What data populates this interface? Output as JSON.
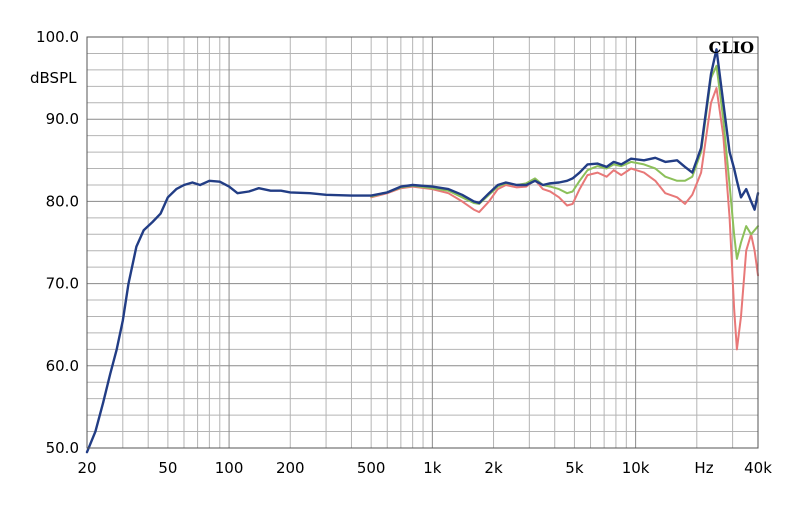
{
  "chart_data": {
    "type": "line",
    "title": "",
    "brand": "CLIO",
    "xlabel": "",
    "ylabel": "dBSPL",
    "x_unit_tick": "Hz",
    "xscale": "log",
    "xlim": [
      20,
      40000
    ],
    "ylim": [
      50,
      100
    ],
    "grid": true,
    "legend": "none",
    "y_ticks": [
      "50.0",
      "60.0",
      "70.0",
      "80.0",
      "90.0",
      "100.0"
    ],
    "x_ticks": [
      {
        "value": 20,
        "label": "20"
      },
      {
        "value": 50,
        "label": "50"
      },
      {
        "value": 100,
        "label": "100"
      },
      {
        "value": 200,
        "label": "200"
      },
      {
        "value": 500,
        "label": "500"
      },
      {
        "value": 1000,
        "label": "1k"
      },
      {
        "value": 2000,
        "label": "2k"
      },
      {
        "value": 5000,
        "label": "5k"
      },
      {
        "value": 10000,
        "label": "10k"
      },
      {
        "value": 40000,
        "label": "40k"
      }
    ],
    "x_grid": [
      20,
      30,
      40,
      50,
      60,
      70,
      80,
      90,
      100,
      200,
      300,
      400,
      500,
      600,
      700,
      800,
      900,
      1000,
      2000,
      3000,
      4000,
      5000,
      6000,
      7000,
      8000,
      9000,
      10000,
      20000,
      30000,
      40000
    ],
    "x_major": [
      100,
      1000,
      10000
    ],
    "series": [
      {
        "color": "#e87878",
        "points": [
          [
            500,
            80.5
          ],
          [
            600,
            81.0
          ],
          [
            700,
            81.6
          ],
          [
            800,
            81.8
          ],
          [
            1000,
            81.5
          ],
          [
            1200,
            81.0
          ],
          [
            1400,
            80.0
          ],
          [
            1600,
            79.0
          ],
          [
            1700,
            78.7
          ],
          [
            1900,
            80.0
          ],
          [
            2100,
            81.5
          ],
          [
            2300,
            82.0
          ],
          [
            2600,
            81.7
          ],
          [
            2900,
            81.8
          ],
          [
            3200,
            82.6
          ],
          [
            3500,
            81.5
          ],
          [
            3800,
            81.2
          ],
          [
            4200,
            80.5
          ],
          [
            4600,
            79.5
          ],
          [
            4900,
            79.7
          ],
          [
            5300,
            81.5
          ],
          [
            5800,
            83.2
          ],
          [
            6500,
            83.5
          ],
          [
            7200,
            83.0
          ],
          [
            7800,
            83.8
          ],
          [
            8500,
            83.2
          ],
          [
            9500,
            84.0
          ],
          [
            11000,
            83.5
          ],
          [
            12500,
            82.5
          ],
          [
            14000,
            81.0
          ],
          [
            16000,
            80.5
          ],
          [
            17500,
            79.7
          ],
          [
            19000,
            80.8
          ],
          [
            21000,
            83.5
          ],
          [
            23500,
            92.0
          ],
          [
            25000,
            93.8
          ],
          [
            27000,
            88.0
          ],
          [
            29000,
            78.0
          ],
          [
            30500,
            67.0
          ],
          [
            31500,
            62.0
          ],
          [
            33000,
            66.0
          ],
          [
            35000,
            74.0
          ],
          [
            37000,
            76.0
          ],
          [
            38500,
            74.0
          ],
          [
            40000,
            71.0
          ]
        ]
      },
      {
        "color": "#8cc05a",
        "points": [
          [
            500,
            80.6
          ],
          [
            600,
            81.1
          ],
          [
            700,
            81.7
          ],
          [
            800,
            81.9
          ],
          [
            1000,
            81.6
          ],
          [
            1200,
            81.3
          ],
          [
            1400,
            80.5
          ],
          [
            1600,
            79.8
          ],
          [
            1700,
            79.7
          ],
          [
            1900,
            80.8
          ],
          [
            2100,
            81.8
          ],
          [
            2300,
            82.2
          ],
          [
            2600,
            82.0
          ],
          [
            2900,
            82.2
          ],
          [
            3200,
            82.8
          ],
          [
            3500,
            82.0
          ],
          [
            3800,
            81.8
          ],
          [
            4200,
            81.5
          ],
          [
            4600,
            81.0
          ],
          [
            4900,
            81.2
          ],
          [
            5300,
            82.5
          ],
          [
            5800,
            83.8
          ],
          [
            6500,
            84.3
          ],
          [
            7200,
            84.0
          ],
          [
            7800,
            84.5
          ],
          [
            8500,
            84.3
          ],
          [
            9500,
            84.8
          ],
          [
            11000,
            84.5
          ],
          [
            12500,
            84.0
          ],
          [
            14000,
            83.0
          ],
          [
            16000,
            82.5
          ],
          [
            17500,
            82.5
          ],
          [
            19000,
            83.0
          ],
          [
            21000,
            86.0
          ],
          [
            23500,
            95.0
          ],
          [
            25000,
            96.5
          ],
          [
            27000,
            90.0
          ],
          [
            29000,
            82.0
          ],
          [
            30500,
            76.0
          ],
          [
            31500,
            73.0
          ],
          [
            33000,
            75.0
          ],
          [
            35000,
            77.0
          ],
          [
            37000,
            76.0
          ],
          [
            38500,
            76.5
          ],
          [
            40000,
            77.0
          ]
        ]
      },
      {
        "color": "#223d85",
        "points": [
          [
            20,
            49.5
          ],
          [
            22,
            52.0
          ],
          [
            24,
            55.5
          ],
          [
            26,
            59.0
          ],
          [
            28,
            62.0
          ],
          [
            30,
            65.5
          ],
          [
            32,
            70.0
          ],
          [
            35,
            74.5
          ],
          [
            38,
            76.5
          ],
          [
            42,
            77.5
          ],
          [
            46,
            78.5
          ],
          [
            50,
            80.5
          ],
          [
            55,
            81.5
          ],
          [
            60,
            82.0
          ],
          [
            66,
            82.3
          ],
          [
            72,
            82.0
          ],
          [
            80,
            82.5
          ],
          [
            90,
            82.4
          ],
          [
            100,
            81.8
          ],
          [
            110,
            81.0
          ],
          [
            125,
            81.2
          ],
          [
            140,
            81.6
          ],
          [
            160,
            81.3
          ],
          [
            180,
            81.3
          ],
          [
            200,
            81.1
          ],
          [
            250,
            81.0
          ],
          [
            300,
            80.8
          ],
          [
            400,
            80.7
          ],
          [
            500,
            80.7
          ],
          [
            600,
            81.1
          ],
          [
            700,
            81.8
          ],
          [
            800,
            82.0
          ],
          [
            1000,
            81.8
          ],
          [
            1200,
            81.5
          ],
          [
            1400,
            80.8
          ],
          [
            1600,
            80.0
          ],
          [
            1700,
            79.8
          ],
          [
            1900,
            81.0
          ],
          [
            2100,
            82.0
          ],
          [
            2300,
            82.3
          ],
          [
            2600,
            82.0
          ],
          [
            2900,
            82.0
          ],
          [
            3200,
            82.5
          ],
          [
            3500,
            82.0
          ],
          [
            3800,
            82.2
          ],
          [
            4200,
            82.3
          ],
          [
            4600,
            82.5
          ],
          [
            4900,
            82.8
          ],
          [
            5300,
            83.5
          ],
          [
            5800,
            84.5
          ],
          [
            6500,
            84.6
          ],
          [
            7200,
            84.2
          ],
          [
            7800,
            84.8
          ],
          [
            8500,
            84.5
          ],
          [
            9500,
            85.2
          ],
          [
            11000,
            85.0
          ],
          [
            12500,
            85.3
          ],
          [
            14000,
            84.8
          ],
          [
            16000,
            85.0
          ],
          [
            17500,
            84.2
          ],
          [
            19000,
            83.5
          ],
          [
            21000,
            86.5
          ],
          [
            23500,
            95.5
          ],
          [
            25000,
            98.5
          ],
          [
            27000,
            92.0
          ],
          [
            29000,
            86.0
          ],
          [
            30500,
            84.0
          ],
          [
            31500,
            82.5
          ],
          [
            33000,
            80.5
          ],
          [
            35000,
            81.5
          ],
          [
            37000,
            80.0
          ],
          [
            38500,
            79.0
          ],
          [
            40000,
            81.0
          ]
        ]
      }
    ]
  }
}
